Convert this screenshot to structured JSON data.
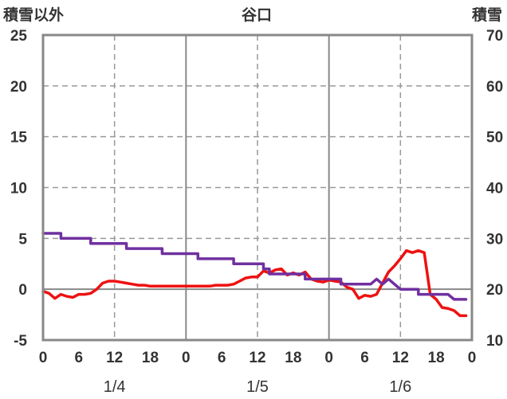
{
  "chart_data": {
    "type": "line",
    "title": "谷口",
    "left_axis_label": "積雪以外",
    "right_axis_label": "積雪",
    "y_left": {
      "min": -5,
      "max": 25,
      "ticks": [
        25,
        20,
        15,
        10,
        5,
        0,
        -5
      ]
    },
    "y_right": {
      "min": 10,
      "max": 70,
      "ticks": [
        70,
        60,
        50,
        40,
        30,
        20,
        10
      ]
    },
    "x": {
      "min": 0,
      "max": 72,
      "unit": "hours",
      "tick_labels": [
        "0",
        "6",
        "12",
        "18",
        "0",
        "6",
        "12",
        "18",
        "0",
        "6",
        "12",
        "18",
        "0"
      ],
      "day_labels": [
        "1/4",
        "1/5",
        "1/6"
      ]
    },
    "grid": true,
    "series": [
      {
        "axis": "left",
        "color": "#ee1111",
        "values": [
          [
            0,
            -0.2
          ],
          [
            1,
            -0.4
          ],
          [
            2,
            -0.9
          ],
          [
            3,
            -0.5
          ],
          [
            4,
            -0.7
          ],
          [
            5,
            -0.8
          ],
          [
            6,
            -0.5
          ],
          [
            7,
            -0.5
          ],
          [
            8,
            -0.4
          ],
          [
            9,
            0.0
          ],
          [
            10,
            0.6
          ],
          [
            11,
            0.8
          ],
          [
            12,
            0.8
          ],
          [
            13,
            0.7
          ],
          [
            14,
            0.6
          ],
          [
            15,
            0.5
          ],
          [
            16,
            0.4
          ],
          [
            17,
            0.4
          ],
          [
            18,
            0.3
          ],
          [
            19,
            0.3
          ],
          [
            20,
            0.3
          ],
          [
            21,
            0.3
          ],
          [
            22,
            0.3
          ],
          [
            23,
            0.3
          ],
          [
            24,
            0.3
          ],
          [
            25,
            0.3
          ],
          [
            26,
            0.3
          ],
          [
            27,
            0.3
          ],
          [
            28,
            0.3
          ],
          [
            29,
            0.4
          ],
          [
            30,
            0.4
          ],
          [
            31,
            0.4
          ],
          [
            32,
            0.5
          ],
          [
            33,
            0.8
          ],
          [
            34,
            1.1
          ],
          [
            35,
            1.2
          ],
          [
            36,
            1.2
          ],
          [
            37,
            1.8
          ],
          [
            38,
            1.6
          ],
          [
            39,
            1.9
          ],
          [
            40,
            2.0
          ],
          [
            41,
            1.4
          ],
          [
            42,
            1.6
          ],
          [
            43,
            1.4
          ],
          [
            44,
            1.7
          ],
          [
            45,
            1.0
          ],
          [
            46,
            0.8
          ],
          [
            47,
            0.7
          ],
          [
            48,
            0.9
          ],
          [
            49,
            0.8
          ],
          [
            50,
            0.7
          ],
          [
            51,
            0.2
          ],
          [
            52,
            0.0
          ],
          [
            53,
            -0.9
          ],
          [
            54,
            -0.6
          ],
          [
            55,
            -0.7
          ],
          [
            56,
            -0.5
          ],
          [
            57,
            0.6
          ],
          [
            58,
            1.7
          ],
          [
            59,
            2.3
          ],
          [
            60,
            3.0
          ],
          [
            61,
            3.8
          ],
          [
            62,
            3.6
          ],
          [
            63,
            3.8
          ],
          [
            64,
            3.6
          ],
          [
            65,
            -0.5
          ],
          [
            66,
            -1.0
          ],
          [
            67,
            -1.8
          ],
          [
            68,
            -1.9
          ],
          [
            69,
            -2.1
          ],
          [
            70,
            -2.6
          ],
          [
            71,
            -2.6
          ]
        ]
      },
      {
        "axis": "right",
        "color": "#7030a0",
        "values": [
          [
            0,
            31
          ],
          [
            3,
            31
          ],
          [
            3,
            30
          ],
          [
            8,
            30
          ],
          [
            8,
            29
          ],
          [
            14,
            29
          ],
          [
            14,
            28
          ],
          [
            20,
            28
          ],
          [
            20,
            27
          ],
          [
            26,
            27
          ],
          [
            26,
            26
          ],
          [
            32,
            26
          ],
          [
            32,
            25
          ],
          [
            37,
            25
          ],
          [
            37,
            24
          ],
          [
            38,
            24
          ],
          [
            38,
            23
          ],
          [
            44,
            23
          ],
          [
            44,
            22
          ],
          [
            50,
            22
          ],
          [
            50,
            21
          ],
          [
            55,
            21
          ],
          [
            56,
            22
          ],
          [
            57,
            21
          ],
          [
            58,
            22
          ],
          [
            60,
            20
          ],
          [
            63,
            20
          ],
          [
            63,
            19
          ],
          [
            68,
            19
          ],
          [
            69,
            18
          ],
          [
            71,
            18
          ]
        ]
      }
    ]
  }
}
